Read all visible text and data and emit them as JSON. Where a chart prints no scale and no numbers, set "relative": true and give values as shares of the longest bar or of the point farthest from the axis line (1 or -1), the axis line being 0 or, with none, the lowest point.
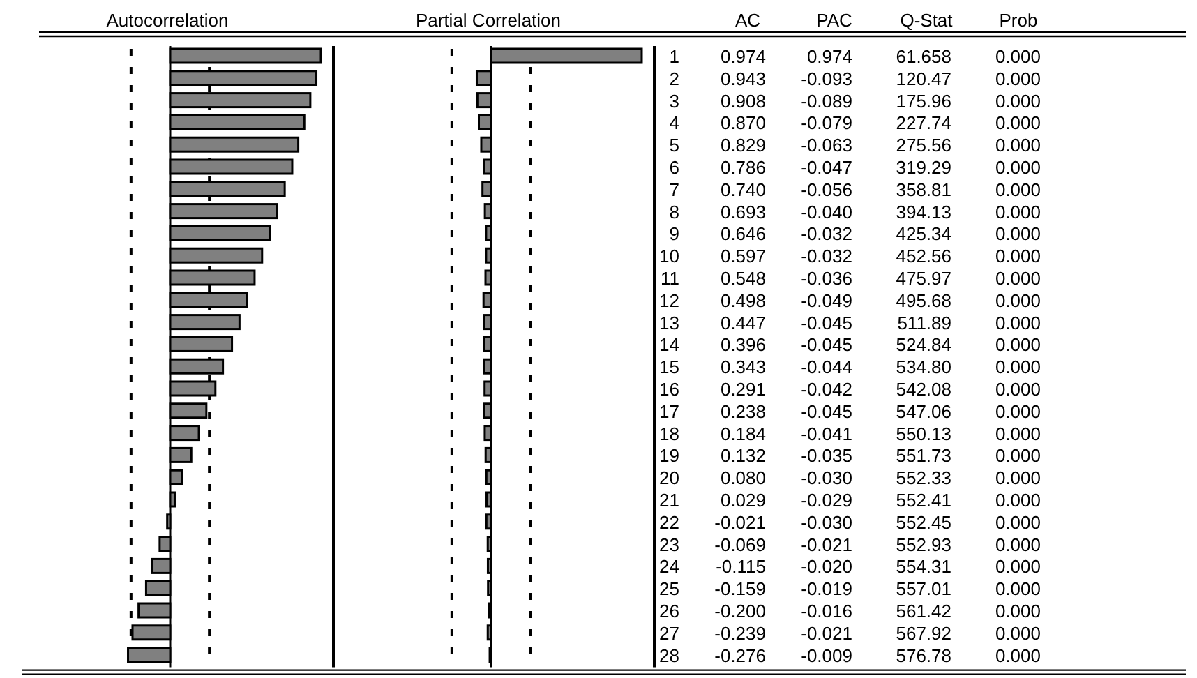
{
  "chart_data": [
    {
      "type": "bar",
      "orientation": "horizontal",
      "title": "Autocorrelation",
      "relative": true,
      "color": "#808080",
      "categories": [
        "1",
        "2",
        "3",
        "4",
        "5",
        "6",
        "7",
        "8",
        "9",
        "10",
        "11",
        "12",
        "13",
        "14",
        "15",
        "16",
        "17",
        "18",
        "19",
        "20",
        "21",
        "22",
        "23",
        "24",
        "25",
        "26",
        "27",
        "28"
      ],
      "values": [
        1,
        0.97,
        0.93,
        0.89,
        0.85,
        0.81,
        0.76,
        0.71,
        0.66,
        0.61,
        0.56,
        0.51,
        0.46,
        0.41,
        0.35,
        0.3,
        0.24,
        0.19,
        0.14,
        0.08,
        0.03,
        -0.02,
        -0.07,
        -0.12,
        -0.16,
        -0.21,
        -0.25,
        -0.28
      ],
      "ref_lines": [
        {
          "axis": "x",
          "value": -0.26,
          "label": null,
          "line_style": "dashed"
        },
        {
          "axis": "x",
          "value": 0.26,
          "label": null,
          "line_style": "dashed"
        }
      ]
    },
    {
      "type": "bar",
      "orientation": "horizontal",
      "title": "Partial Correlation",
      "relative": true,
      "color": "#808080",
      "categories": [
        null,
        null,
        null,
        null,
        null,
        null,
        null,
        null,
        null,
        null,
        null,
        null,
        null,
        null,
        null,
        null,
        null,
        null,
        null,
        null,
        null,
        null,
        null,
        null,
        null,
        null,
        null,
        null
      ],
      "values": [
        1,
        -0.095,
        -0.091,
        -0.081,
        -0.065,
        -0.048,
        -0.057,
        -0.041,
        -0.033,
        -0.033,
        -0.037,
        -0.05,
        -0.046,
        -0.046,
        -0.045,
        -0.043,
        -0.046,
        -0.042,
        -0.036,
        -0.031,
        -0.03,
        -0.031,
        -0.022,
        -0.021,
        -0.02,
        -0.016,
        -0.022,
        -0.009
      ],
      "ref_lines": [
        {
          "axis": "x",
          "value": -0.26,
          "label": null,
          "line_style": "dashed"
        },
        {
          "axis": "x",
          "value": 0.26,
          "label": null,
          "line_style": "dashed"
        }
      ]
    },
    {
      "type": "other",
      "title": "AC",
      "values": [
        0.974,
        0.943,
        0.908,
        0.87,
        0.829,
        0.786,
        0.74,
        0.693,
        0.646,
        0.597,
        0.548,
        0.498,
        0.447,
        0.396,
        0.343,
        0.291,
        0.238,
        0.184,
        0.132,
        0.08,
        0.029,
        -0.021,
        -0.069,
        -0.115,
        -0.159,
        -0.2,
        -0.239,
        -0.276
      ],
      "value_labels": [
        "0.974",
        "0.943",
        "0.908",
        "0.870",
        "0.829",
        "0.786",
        "0.740",
        "0.693",
        "0.646",
        "0.597",
        "0.548",
        "0.498",
        "0.447",
        "0.396",
        "0.343",
        "0.291",
        "0.238",
        "0.184",
        "0.132",
        "0.080",
        "0.029",
        "-0.021",
        "-0.069",
        "-0.115",
        "-0.159",
        "-0.200",
        "-0.239",
        "-0.276"
      ]
    },
    {
      "type": "other",
      "title": "PAC",
      "values": [
        0.974,
        -0.093,
        -0.089,
        -0.079,
        -0.063,
        -0.047,
        -0.056,
        -0.04,
        -0.032,
        -0.032,
        -0.036,
        -0.049,
        -0.045,
        -0.045,
        -0.044,
        -0.042,
        -0.045,
        -0.041,
        -0.035,
        -0.03,
        -0.029,
        -0.03,
        -0.021,
        -0.02,
        -0.019,
        -0.016,
        -0.021,
        -0.009
      ],
      "value_labels": [
        "0.974",
        "-0.093",
        "-0.089",
        "-0.079",
        "-0.063",
        "-0.047",
        "-0.056",
        "-0.040",
        "-0.032",
        "-0.032",
        "-0.036",
        "-0.049",
        "-0.045",
        "-0.045",
        "-0.044",
        "-0.042",
        "-0.045",
        "-0.041",
        "-0.035",
        "-0.030",
        "-0.029",
        "-0.030",
        "-0.021",
        "-0.020",
        "-0.019",
        "-0.016",
        "-0.021",
        "-0.009"
      ]
    },
    {
      "type": "other",
      "title": "Q-Stat",
      "values": [
        61.658,
        120.47,
        175.96,
        227.74,
        275.56,
        319.29,
        358.81,
        394.13,
        425.34,
        452.56,
        475.97,
        495.68,
        511.89,
        524.84,
        534.8,
        542.08,
        547.06,
        550.13,
        551.73,
        552.33,
        552.41,
        552.45,
        552.93,
        554.31,
        557.01,
        561.42,
        567.92,
        576.78
      ],
      "value_labels": [
        "61.658",
        "120.47",
        "175.96",
        "227.74",
        "275.56",
        "319.29",
        "358.81",
        "394.13",
        "425.34",
        "452.56",
        "475.97",
        "495.68",
        "511.89",
        "524.84",
        "534.80",
        "542.08",
        "547.06",
        "550.13",
        "551.73",
        "552.33",
        "552.41",
        "552.45",
        "552.93",
        "554.31",
        "557.01",
        "561.42",
        "567.92",
        "576.78"
      ]
    },
    {
      "type": "other",
      "title": "Prob",
      "values": [
        0,
        0,
        0,
        0,
        0,
        0,
        0,
        0,
        0,
        0,
        0,
        0,
        0,
        0,
        0,
        0,
        0,
        0,
        0,
        0,
        0,
        0,
        0,
        0,
        0,
        0,
        0,
        0
      ],
      "value_labels": [
        "0.000",
        "0.000",
        "0.000",
        "0.000",
        "0.000",
        "0.000",
        "0.000",
        "0.000",
        "0.000",
        "0.000",
        "0.000",
        "0.000",
        "0.000",
        "0.000",
        "0.000",
        "0.000",
        "0.000",
        "0.000",
        "0.000",
        "0.000",
        "0.000",
        "0.000",
        "0.000",
        "0.000",
        "0.000",
        "0.000",
        "0.000",
        "0.000"
      ]
    }
  ]
}
